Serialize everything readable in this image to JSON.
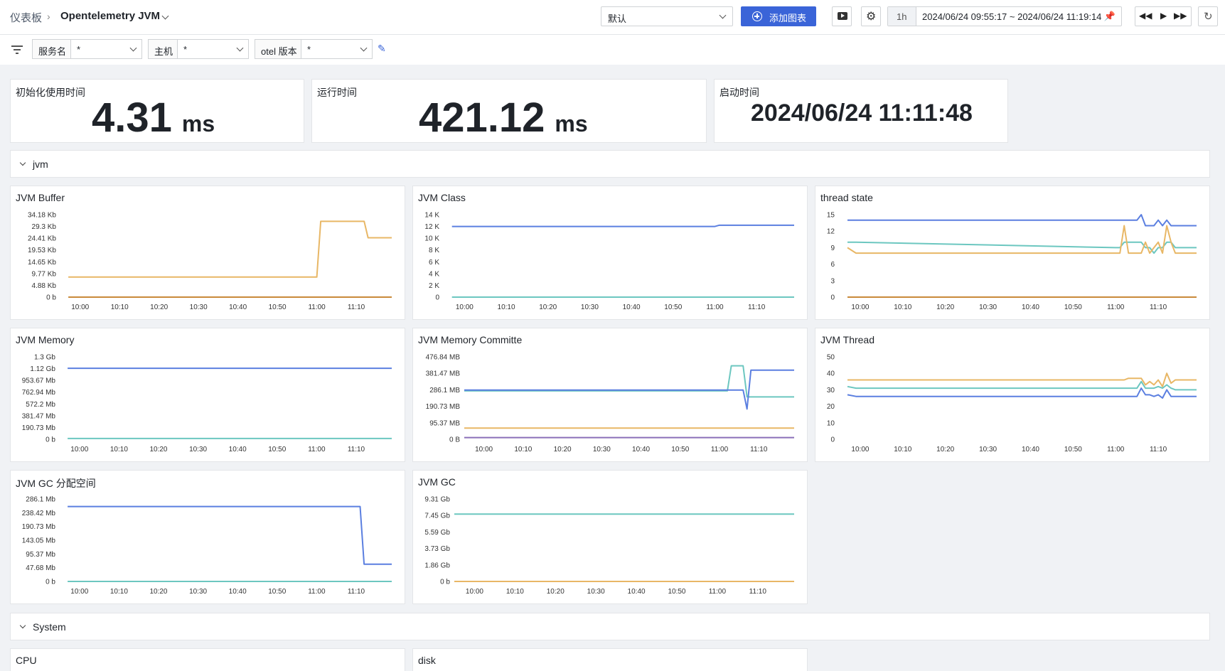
{
  "header": {
    "breadcrumb_root": "仪表板",
    "dashboard_title": "Opentelemetry JVM",
    "view_select": "默认",
    "add_chart_label": "添加图表",
    "time_range_short": "1h",
    "time_range": "2024/06/24 09:55:17 ~ 2024/06/24 11:19:14"
  },
  "filters": [
    {
      "label": "服务名",
      "value": "*"
    },
    {
      "label": "主机",
      "value": "*"
    },
    {
      "label": "otel 版本",
      "value": "*"
    }
  ],
  "stats": [
    {
      "title": "初始化使用时间",
      "value": "4.31",
      "unit": "ms"
    },
    {
      "title": "运行时间",
      "value": "421.12",
      "unit": "ms"
    },
    {
      "title": "启动时间",
      "value": "2024/06/24 11:11:48",
      "unit": ""
    }
  ],
  "sections": {
    "jvm": "jvm",
    "system": "System"
  },
  "bottom_cards": {
    "cpu": "CPU",
    "disk": "disk"
  },
  "colors": {
    "blue": "#5b7fe0",
    "teal": "#6cc7c0",
    "orange": "#e8b766",
    "brown": "#c98a3a",
    "purple": "#8a6fb8",
    "primary": "#3a64d8"
  },
  "chart_data": [
    {
      "type": "line",
      "title": "JVM Buffer",
      "x_ticks": [
        "10:00",
        "10:10",
        "10:20",
        "10:30",
        "10:40",
        "10:50",
        "11:00",
        "11:10"
      ],
      "y_ticks": [
        "0 b",
        "4.88 Kb",
        "9.77 Kb",
        "14.65 Kb",
        "19.53 Kb",
        "24.41 Kb",
        "29.3 Kb",
        "34.18 Kb"
      ],
      "ylim": [
        0,
        34.18
      ],
      "x": [
        "09:57",
        "11:00",
        "11:01",
        "11:12",
        "11:13",
        "11:19"
      ],
      "series": [
        {
          "color": "#e8b766",
          "values": [
            8.3,
            8.3,
            31.4,
            31.4,
            24.6,
            24.6
          ]
        },
        {
          "color": "#c98a3a",
          "values": [
            0,
            0,
            0,
            0,
            0,
            0
          ]
        }
      ]
    },
    {
      "type": "line",
      "title": "JVM Class",
      "x_ticks": [
        "10:00",
        "10:10",
        "10:20",
        "10:30",
        "10:40",
        "10:50",
        "11:00",
        "11:10"
      ],
      "y_ticks": [
        "0",
        "2 K",
        "4 K",
        "6 K",
        "8 K",
        "10 K",
        "12 K",
        "14 K"
      ],
      "ylim": [
        0,
        14000
      ],
      "x": [
        "09:57",
        "11:00",
        "11:01",
        "11:19"
      ],
      "series": [
        {
          "color": "#5b7fe0",
          "values": [
            12000,
            12000,
            12200,
            12200
          ]
        },
        {
          "color": "#6cc7c0",
          "values": [
            0,
            0,
            0,
            0
          ]
        }
      ]
    },
    {
      "type": "line",
      "title": "thread state",
      "x_ticks": [
        "10:00",
        "10:10",
        "10:20",
        "10:30",
        "10:40",
        "10:50",
        "11:00",
        "11:10"
      ],
      "y_ticks": [
        "0",
        "3",
        "6",
        "9",
        "12",
        "15"
      ],
      "ylim": [
        0,
        15
      ],
      "x": [
        "09:57",
        "09:59",
        "11:00",
        "11:01",
        "11:02",
        "11:03",
        "11:05",
        "11:06",
        "11:07",
        "11:08",
        "11:09",
        "11:10",
        "11:11",
        "11:12",
        "11:13",
        "11:14",
        "11:19"
      ],
      "series": [
        {
          "color": "#5b7fe0",
          "values": [
            14,
            14,
            14,
            14,
            14,
            14,
            14,
            15,
            13,
            13,
            13,
            14,
            13,
            14,
            13,
            13,
            13
          ]
        },
        {
          "color": "#6cc7c0",
          "values": [
            10,
            10,
            9,
            9,
            10,
            10,
            10,
            10,
            9,
            9,
            8,
            9,
            9,
            10,
            10,
            9,
            9
          ]
        },
        {
          "color": "#e8b766",
          "values": [
            9,
            8,
            8,
            8,
            13,
            8,
            8,
            8,
            10,
            8,
            9,
            10,
            8,
            13,
            10,
            8,
            8
          ]
        },
        {
          "color": "#c98a3a",
          "values": [
            0,
            0,
            0,
            0,
            0,
            0,
            0,
            0,
            0,
            0,
            0,
            0,
            0,
            0,
            0,
            0,
            0
          ]
        }
      ]
    },
    {
      "type": "line",
      "title": "JVM Memory",
      "x_ticks": [
        "10:00",
        "10:10",
        "10:20",
        "10:30",
        "10:40",
        "10:50",
        "11:00",
        "11:10"
      ],
      "y_ticks": [
        "0 b",
        "190.73 Mb",
        "381.47 Mb",
        "572.2 Mb",
        "762.94 Mb",
        "953.67 Mb",
        "1.12 Gb",
        "1.3 Gb"
      ],
      "ylim": [
        0,
        1.3
      ],
      "x": [
        "09:57",
        "11:19"
      ],
      "series": [
        {
          "color": "#5b7fe0",
          "values": [
            1.12,
            1.12
          ]
        },
        {
          "color": "#6cc7c0",
          "values": [
            0.012,
            0.012
          ]
        }
      ]
    },
    {
      "type": "line",
      "title": "JVM Memory Committe",
      "x_ticks": [
        "10:00",
        "10:10",
        "10:20",
        "10:30",
        "10:40",
        "10:50",
        "11:00",
        "11:10"
      ],
      "y_ticks": [
        "0 B",
        "95.37 MB",
        "190.73 MB",
        "286.1 MB",
        "381.47 MB",
        "476.84 MB"
      ],
      "ylim": [
        0,
        476.84
      ],
      "x": [
        "09:55",
        "11:02",
        "11:03",
        "11:06",
        "11:07",
        "11:08",
        "11:09",
        "11:19"
      ],
      "series": [
        {
          "color": "#6cc7c0",
          "values": [
            280,
            280,
            425,
            425,
            245,
            245,
            245,
            245
          ]
        },
        {
          "color": "#5b7fe0",
          "values": [
            285,
            285,
            285,
            285,
            175,
            400,
            400,
            400
          ]
        },
        {
          "color": "#e8b766",
          "values": [
            65,
            65,
            65,
            65,
            65,
            65,
            65,
            65
          ]
        },
        {
          "color": "#8a6fb8",
          "values": [
            10,
            10,
            10,
            10,
            10,
            10,
            10,
            10
          ]
        }
      ]
    },
    {
      "type": "line",
      "title": "JVM Thread",
      "x_ticks": [
        "10:00",
        "10:10",
        "10:20",
        "10:30",
        "10:40",
        "10:50",
        "11:00",
        "11:10"
      ],
      "y_ticks": [
        "0",
        "10",
        "20",
        "30",
        "40",
        "50"
      ],
      "ylim": [
        0,
        50
      ],
      "x": [
        "09:57",
        "09:59",
        "11:00",
        "11:01",
        "11:02",
        "11:03",
        "11:05",
        "11:06",
        "11:07",
        "11:08",
        "11:09",
        "11:10",
        "11:11",
        "11:12",
        "11:13",
        "11:14",
        "11:19"
      ],
      "series": [
        {
          "color": "#e8b766",
          "values": [
            36,
            36,
            36,
            36,
            36,
            37,
            37,
            37,
            33,
            35,
            33,
            36,
            32,
            40,
            34,
            36,
            36
          ]
        },
        {
          "color": "#6cc7c0",
          "values": [
            32,
            31,
            31,
            31,
            31,
            31,
            31,
            35,
            31,
            31,
            31,
            32,
            31,
            33,
            31,
            30,
            30
          ]
        },
        {
          "color": "#5b7fe0",
          "values": [
            27,
            26,
            26,
            26,
            26,
            26,
            26,
            31,
            27,
            27,
            26,
            27,
            25,
            30,
            26,
            26,
            26
          ]
        }
      ]
    },
    {
      "type": "line",
      "title": "JVM GC 分配空间",
      "x_ticks": [
        "10:00",
        "10:10",
        "10:20",
        "10:30",
        "10:40",
        "10:50",
        "11:00",
        "11:10"
      ],
      "y_ticks": [
        "0 b",
        "47.68 Mb",
        "95.37 Mb",
        "143.05 Mb",
        "190.73 Mb",
        "238.42 Mb",
        "286.1 Mb"
      ],
      "ylim": [
        0,
        286.1
      ],
      "x": [
        "09:57",
        "11:11",
        "11:12",
        "11:19"
      ],
      "series": [
        {
          "color": "#5b7fe0",
          "values": [
            260,
            260,
            60,
            60
          ]
        },
        {
          "color": "#6cc7c0",
          "values": [
            0,
            0,
            0,
            0
          ]
        }
      ]
    },
    {
      "type": "line",
      "title": "JVM GC",
      "x_ticks": [
        "10:00",
        "10:10",
        "10:20",
        "10:30",
        "10:40",
        "10:50",
        "11:00",
        "11:10"
      ],
      "y_ticks": [
        "0 b",
        "1.86 Gb",
        "3.73 Gb",
        "5.59 Gb",
        "7.45 Gb",
        "9.31 Gb"
      ],
      "ylim": [
        0,
        9.31
      ],
      "x": [
        "09:55",
        "11:19"
      ],
      "series": [
        {
          "color": "#6cc7c0",
          "values": [
            7.6,
            7.6
          ]
        },
        {
          "color": "#e8b766",
          "values": [
            0,
            0
          ]
        }
      ]
    }
  ]
}
